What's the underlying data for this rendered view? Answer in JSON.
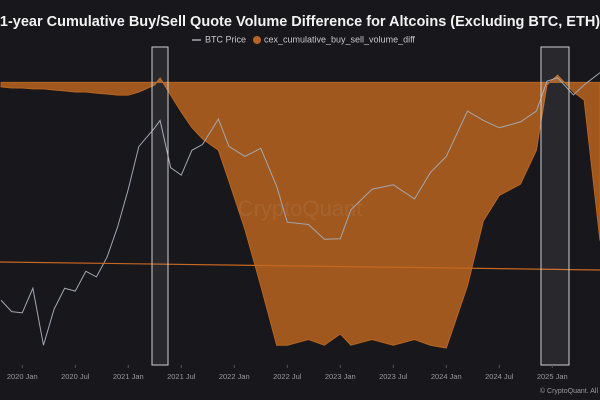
{
  "chart_data": {
    "type": "area-line",
    "title": "1-year Cumulative Buy/Sell Quote Volume Difference for Altcoins (Excluding BTC, ETH)",
    "watermark": "CryptoQuant",
    "footer": "© CryptoQuant. All",
    "x": [
      2019.8,
      2019.9,
      2020.0,
      2020.1,
      2020.2,
      2020.3,
      2020.4,
      2020.5,
      2020.6,
      2020.7,
      2020.8,
      2020.9,
      2021.0,
      2021.1,
      2021.25,
      2021.3,
      2021.4,
      2021.5,
      2021.6,
      2021.7,
      2021.85,
      2021.95,
      2022.1,
      2022.25,
      2022.4,
      2022.5,
      2022.7,
      2022.85,
      2023.0,
      2023.1,
      2023.3,
      2023.5,
      2023.7,
      2023.85,
      2024.0,
      2024.2,
      2024.35,
      2024.5,
      2024.7,
      2024.85,
      2024.95,
      2025.05,
      2025.2,
      2025.3,
      2025.45
    ],
    "series": [
      {
        "name": "BTC Price",
        "color": "#a3a7b0",
        "axis": "y2",
        "values": [
          8300,
          7300,
          7200,
          9500,
          5000,
          7500,
          9500,
          9200,
          11500,
          10800,
          13500,
          19000,
          29000,
          47000,
          58000,
          63000,
          37000,
          34000,
          45000,
          48000,
          64000,
          47000,
          42000,
          46000,
          30000,
          20000,
          19500,
          16500,
          16600,
          23000,
          29000,
          30500,
          26000,
          35000,
          42000,
          70000,
          63000,
          58000,
          62000,
          70000,
          98000,
          102000,
          84000,
          94000,
          108000
        ]
      },
      {
        "name": "cex_cumulative_buy_sell_volume_diff",
        "color": "#b8641f",
        "values": [
          -1.6,
          -2.0,
          -2.0,
          -2.3,
          -2.3,
          -2.7,
          -3.0,
          -3.4,
          -3.4,
          -3.8,
          -4.1,
          -4.5,
          -4.5,
          -3.4,
          -0.9,
          1.6,
          -4.5,
          -10.5,
          -16,
          -20,
          -24,
          -35,
          -52,
          -72,
          -93,
          -93,
          -91,
          -93,
          -89,
          -93,
          -91,
          -93,
          -91,
          -93,
          -94,
          -72,
          -49,
          -40,
          -36,
          -24,
          -0.9,
          2.6,
          -3.4,
          -6.2,
          -56
        ]
      }
    ],
    "xlim": [
      2019.79,
      2025.45
    ],
    "xticks": [
      {
        "value": 2020.0,
        "label": "2020 Jan"
      },
      {
        "value": 2020.5,
        "label": "2020 Jul"
      },
      {
        "value": 2021.0,
        "label": "2021 Jan"
      },
      {
        "value": 2021.5,
        "label": "2021 Jul"
      },
      {
        "value": 2022.0,
        "label": "2022 Jan"
      },
      {
        "value": 2022.5,
        "label": "2022 Jul"
      },
      {
        "value": 2023.0,
        "label": "2023 Jan"
      },
      {
        "value": 2023.5,
        "label": "2023 Jul"
      },
      {
        "value": 2024.0,
        "label": "2024 Jan"
      },
      {
        "value": 2024.5,
        "label": "2024 Jul"
      },
      {
        "value": 2025.0,
        "label": "2025 Jan"
      }
    ],
    "ylim": [
      -100,
      15
    ],
    "y2lim": [
      4000,
      156000
    ],
    "y2log": true
  }
}
